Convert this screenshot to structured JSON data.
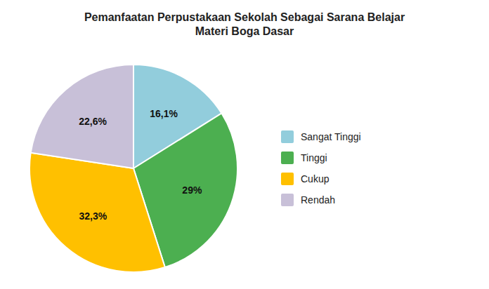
{
  "chart_data": {
    "type": "pie",
    "title": "Pemanfaatan Perpustakaan Sekolah Sebagai Sarana Belajar\nMateri Boga Dasar",
    "categories": [
      "Sangat Tinggi",
      "Tinggi",
      "Cukup",
      "Rendah"
    ],
    "values": [
      16.1,
      29.0,
      32.3,
      22.6
    ],
    "value_labels": [
      "16,1%",
      "29%",
      "32,3%",
      "22,6%"
    ],
    "colors": [
      "#92CDDC",
      "#4CAF50",
      "#FFC000",
      "#C8C0D8"
    ],
    "data_labels": true,
    "legend": "right"
  }
}
